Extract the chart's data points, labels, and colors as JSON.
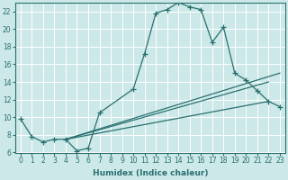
{
  "xlabel": "Humidex (Indice chaleur)",
  "xlim": [
    -0.5,
    23.5
  ],
  "ylim": [
    6,
    23
  ],
  "yticks": [
    6,
    8,
    10,
    12,
    14,
    16,
    18,
    20,
    22
  ],
  "xticks": [
    0,
    1,
    2,
    3,
    4,
    5,
    6,
    7,
    8,
    9,
    10,
    11,
    12,
    13,
    14,
    15,
    16,
    17,
    18,
    19,
    20,
    21,
    22,
    23
  ],
  "bg_color": "#cce8e8",
  "grid_color": "#ffffff",
  "line_color": "#2a7070",
  "line1_x": [
    0,
    1,
    2,
    3,
    4,
    5,
    6,
    7,
    10,
    11,
    12,
    13,
    14,
    15,
    16,
    17,
    18,
    19,
    20,
    21,
    22,
    23
  ],
  "line1_y": [
    9.8,
    7.8,
    7.2,
    7.5,
    7.5,
    6.2,
    6.5,
    10.5,
    13.2,
    17.2,
    21.8,
    22.2,
    23.0,
    22.5,
    22.2,
    18.5,
    20.2,
    15.0,
    14.2,
    13.0,
    11.8,
    11.2
  ],
  "line2_x": [
    4,
    22
  ],
  "line2_y": [
    7.5,
    11.8
  ],
  "line3_x": [
    4,
    22
  ],
  "line3_y": [
    7.5,
    14.0
  ],
  "line4_x": [
    4,
    23
  ],
  "line4_y": [
    7.5,
    15.0
  ]
}
